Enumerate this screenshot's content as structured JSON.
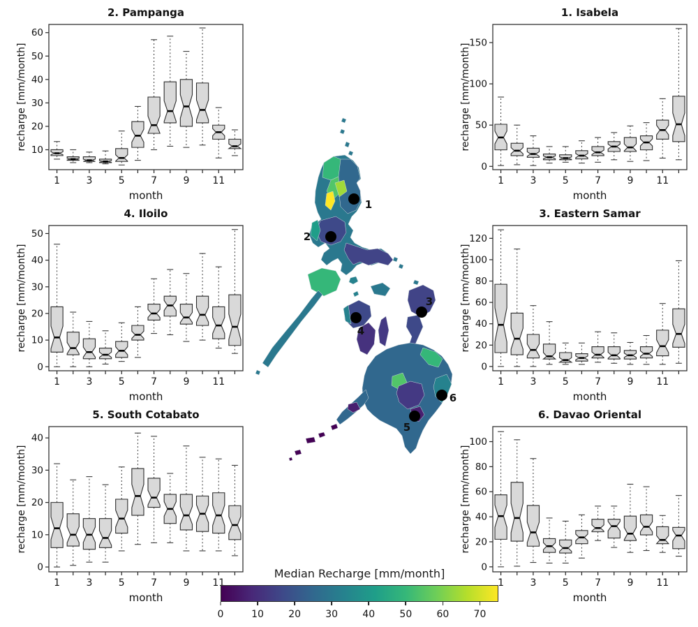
{
  "figure_type": "six notched monthly boxplot panels around a Philippines choropleth map",
  "box_value_order": "low_whisker, q1, median, q3, high_whisker",
  "chart_data": [
    {
      "type": "box",
      "position": "top-left",
      "title": "2. Pampanga",
      "xlabel": "month",
      "ylabel": "recharge [mm/month]",
      "x": [
        1,
        2,
        3,
        4,
        5,
        6,
        7,
        8,
        9,
        10,
        11,
        12
      ],
      "xtick_labels": [
        1,
        3,
        5,
        7,
        9,
        11
      ],
      "yticks": [
        10,
        20,
        30,
        40,
        50,
        60
      ],
      "ylim": [
        1.5,
        63.5
      ],
      "boxes": [
        [
          6,
          7.5,
          8.5,
          10,
          13.5
        ],
        [
          4.5,
          5.5,
          6,
          7,
          10
        ],
        [
          4.5,
          5,
          5.5,
          7,
          9
        ],
        [
          4,
          4.5,
          5,
          6,
          9.5
        ],
        [
          3.5,
          5,
          6.5,
          10.5,
          18
        ],
        [
          5.5,
          11,
          16,
          22,
          28.5
        ],
        [
          10,
          17,
          20.5,
          32.5,
          57
        ],
        [
          11.5,
          21.5,
          26.5,
          39,
          58.5
        ],
        [
          11,
          20,
          28.5,
          40,
          52
        ],
        [
          12,
          21.5,
          27,
          38.5,
          62
        ],
        [
          6.5,
          14.5,
          17.5,
          20.5,
          28
        ],
        [
          7.5,
          10.5,
          11.5,
          14.5,
          18.5
        ]
      ]
    },
    {
      "type": "box",
      "position": "top-right",
      "title": "1. Isabela",
      "xlabel": "month",
      "ylabel": "recharge [mm/month]",
      "x": [
        1,
        2,
        3,
        4,
        5,
        6,
        7,
        8,
        9,
        10,
        11,
        12
      ],
      "xtick_labels": [
        1,
        3,
        5,
        7,
        9,
        11
      ],
      "yticks": [
        0,
        50,
        100,
        150
      ],
      "ylim": [
        -4,
        172
      ],
      "boxes": [
        [
          1,
          20,
          35,
          51,
          84
        ],
        [
          2,
          13,
          19,
          28,
          50
        ],
        [
          1,
          11,
          15,
          22,
          37
        ],
        [
          4,
          8,
          11,
          15,
          24
        ],
        [
          5,
          8,
          10,
          14,
          24
        ],
        [
          4,
          9,
          13,
          19,
          31
        ],
        [
          5,
          13,
          17,
          24,
          35
        ],
        [
          8,
          18,
          24,
          30,
          41
        ],
        [
          6,
          18,
          23,
          35,
          49
        ],
        [
          7,
          20,
          29,
          37,
          53
        ],
        [
          10,
          33,
          44,
          56,
          82
        ],
        [
          8,
          30,
          51,
          85,
          167
        ]
      ]
    },
    {
      "type": "box",
      "position": "middle-left",
      "title": "4. Iloilo",
      "xlabel": "month",
      "ylabel": "recharge [mm/month]",
      "x": [
        1,
        2,
        3,
        4,
        5,
        6,
        7,
        8,
        9,
        10,
        11,
        12
      ],
      "xtick_labels": [
        1,
        3,
        5,
        7,
        9,
        11
      ],
      "yticks": [
        0,
        10,
        20,
        30,
        40,
        50
      ],
      "ylim": [
        -1.5,
        53
      ],
      "boxes": [
        [
          0,
          5.5,
          11,
          22.5,
          46
        ],
        [
          0,
          4.5,
          7,
          13,
          20.5
        ],
        [
          0,
          3,
          5.5,
          10.5,
          17
        ],
        [
          1,
          3,
          4.5,
          7,
          13.5
        ],
        [
          2,
          3.5,
          6,
          9.5,
          16.5
        ],
        [
          3.5,
          10,
          12,
          15.5,
          22.5
        ],
        [
          12.5,
          17.5,
          20,
          23.5,
          33
        ],
        [
          12,
          19,
          23,
          26.5,
          36.5
        ],
        [
          9.5,
          16,
          18.5,
          23.5,
          35
        ],
        [
          10,
          15.5,
          19.5,
          26.5,
          42.5
        ],
        [
          7,
          10.5,
          15.5,
          22.5,
          37.5
        ],
        [
          5,
          8,
          15,
          27,
          51.5
        ]
      ]
    },
    {
      "type": "box",
      "position": "middle-right",
      "title": "3. Eastern Samar",
      "xlabel": "month",
      "ylabel": "recharge [mm/month]",
      "x": [
        1,
        2,
        3,
        4,
        5,
        6,
        7,
        8,
        9,
        10,
        11,
        12
      ],
      "xtick_labels": [
        1,
        3,
        5,
        7,
        9,
        11
      ],
      "yticks": [
        0,
        20,
        40,
        60,
        80,
        100,
        120
      ],
      "ylim": [
        -4,
        132
      ],
      "boxes": [
        [
          0,
          13,
          39,
          77,
          128
        ],
        [
          0,
          11,
          26,
          50,
          110
        ],
        [
          0,
          8,
          15.5,
          30,
          57
        ],
        [
          2,
          7,
          9.5,
          21,
          42
        ],
        [
          2,
          4,
          6,
          13,
          22
        ],
        [
          2,
          5,
          8,
          12,
          22
        ],
        [
          4,
          8,
          11,
          18.5,
          32.5
        ],
        [
          3,
          7,
          10.5,
          18.5,
          31.5
        ],
        [
          2,
          7,
          10.5,
          15,
          22.5
        ],
        [
          2,
          8,
          12,
          18.5,
          29
        ],
        [
          2,
          10,
          19,
          34,
          59
        ],
        [
          3,
          18,
          30.5,
          54,
          99
        ]
      ]
    },
    {
      "type": "box",
      "position": "bottom-left",
      "title": "5. South Cotabato",
      "xlabel": "month",
      "ylabel": "recharge [mm/month]",
      "x": [
        1,
        2,
        3,
        4,
        5,
        6,
        7,
        8,
        9,
        10,
        11,
        12
      ],
      "xtick_labels": [
        1,
        3,
        5,
        7,
        9,
        11
      ],
      "yticks": [
        0,
        10,
        20,
        30,
        40
      ],
      "ylim": [
        -1.5,
        43.5
      ],
      "boxes": [
        [
          0,
          6,
          12,
          20,
          32
        ],
        [
          0.5,
          6.5,
          10,
          16.5,
          27
        ],
        [
          1.5,
          5.5,
          10,
          15,
          28
        ],
        [
          1.5,
          6,
          9,
          15,
          25.5
        ],
        [
          5,
          10.5,
          15,
          21,
          31
        ],
        [
          7,
          16,
          22,
          30.5,
          41.5
        ],
        [
          7.5,
          18.5,
          21.5,
          27.5,
          40.5
        ],
        [
          7.5,
          13.5,
          18,
          22.5,
          29
        ],
        [
          5,
          11.5,
          16,
          22.5,
          37.5
        ],
        [
          5,
          11,
          16.5,
          22,
          34
        ],
        [
          5,
          10.5,
          16,
          23,
          33.5
        ],
        [
          3.5,
          8.5,
          13,
          19,
          31.5
        ]
      ]
    },
    {
      "type": "box",
      "position": "bottom-right",
      "title": "6. Davao Oriental",
      "xlabel": "month",
      "ylabel": "recharge [mm/month]",
      "x": [
        1,
        2,
        3,
        4,
        5,
        6,
        7,
        8,
        9,
        10,
        11,
        12
      ],
      "xtick_labels": [
        1,
        3,
        5,
        7,
        9,
        11
      ],
      "yticks": [
        0,
        20,
        40,
        60,
        80,
        100
      ],
      "ylim": [
        -4,
        112
      ],
      "boxes": [
        [
          0,
          22,
          40.5,
          57.5,
          108
        ],
        [
          0.5,
          20.5,
          39,
          67.5,
          101.5
        ],
        [
          3.5,
          16.5,
          27.5,
          49,
          86.5
        ],
        [
          3,
          11.5,
          16.5,
          22.5,
          39
        ],
        [
          3,
          11,
          15,
          21.5,
          36.5
        ],
        [
          7,
          18.5,
          23.5,
          29,
          41.5
        ],
        [
          21,
          28,
          31,
          38,
          48.5
        ],
        [
          15.5,
          23,
          32.5,
          38,
          48.5
        ],
        [
          11.5,
          21,
          26.5,
          40.5,
          66
        ],
        [
          13,
          25.5,
          32,
          41.5,
          64
        ],
        [
          11.5,
          18.5,
          21.5,
          32,
          41
        ],
        [
          8.5,
          14.5,
          25,
          31.5,
          57
        ]
      ]
    }
  ],
  "box_style": {
    "fill": "#d9d9d9",
    "stroke": "#2b2b2b",
    "median_color": "#000000",
    "whisker_style": "dashed"
  },
  "map": {
    "description": "Philippines choropleth of median recharge with numbered study sites",
    "marker_color": "#000000",
    "markers": [
      {
        "label": "1",
        "x": 151,
        "y": 127,
        "lx": 172,
        "ly": 140
      },
      {
        "label": "2",
        "x": 118,
        "y": 181,
        "lx": 84,
        "ly": 186
      },
      {
        "label": "3",
        "x": 248,
        "y": 289,
        "lx": 259,
        "ly": 279
      },
      {
        "label": "4",
        "x": 154,
        "y": 297,
        "lx": 161,
        "ly": 321
      },
      {
        "label": "5",
        "x": 238,
        "y": 438,
        "lx": 227,
        "ly": 459
      },
      {
        "label": "6",
        "x": 277,
        "y": 408,
        "lx": 293,
        "ly": 417
      }
    ],
    "palette": {
      "teal": "#2a788e",
      "blue": "#31688e",
      "darkblue": "#3e4989",
      "slate": "#414487",
      "indigo": "#46327e",
      "violet": "#443983",
      "purple": "#481f70",
      "deep": "#440154",
      "tealgreen": "#1f9e89",
      "seagreen": "#26828e",
      "green": "#35b779",
      "brightgreen": "#52c569",
      "yellowgreen": "#a0da39",
      "yellow": "#fde725"
    }
  },
  "colorbar": {
    "title": "Median Recharge [mm/month]",
    "range": [
      0,
      75
    ],
    "ticks": [
      0,
      10,
      20,
      30,
      40,
      50,
      60,
      70
    ],
    "palette": [
      "#440154",
      "#482878",
      "#3e4989",
      "#31688e",
      "#26828e",
      "#1f9e89",
      "#35b779",
      "#6ece58",
      "#b5de2b",
      "#fde725"
    ]
  }
}
